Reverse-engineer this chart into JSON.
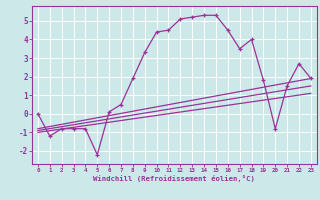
{
  "xlabel": "Windchill (Refroidissement éolien,°C)",
  "bg_color": "#cce8e8",
  "line_color": "#993399",
  "grid_color": "#ffffff",
  "xlim": [
    -0.5,
    23.5
  ],
  "ylim": [
    -2.7,
    5.8
  ],
  "xticks": [
    0,
    1,
    2,
    3,
    4,
    5,
    6,
    7,
    8,
    9,
    10,
    11,
    12,
    13,
    14,
    15,
    16,
    17,
    18,
    19,
    20,
    21,
    22,
    23
  ],
  "yticks": [
    -2,
    -1,
    0,
    1,
    2,
    3,
    4,
    5
  ],
  "series1_x": [
    0,
    1,
    2,
    3,
    4,
    5,
    6,
    7,
    8,
    9,
    10,
    11,
    12,
    13,
    14,
    15,
    16,
    17,
    18,
    19,
    20,
    21,
    22,
    23
  ],
  "series1_y": [
    0.0,
    -1.2,
    -0.8,
    -0.8,
    -0.8,
    -2.2,
    0.1,
    0.5,
    1.9,
    3.3,
    4.4,
    4.5,
    5.1,
    5.2,
    5.3,
    5.3,
    4.5,
    3.5,
    4.0,
    1.8,
    -0.8,
    1.5,
    2.7,
    1.9
  ],
  "series2_x": [
    0,
    23
  ],
  "series2_y": [
    -0.8,
    1.9
  ],
  "series3_x": [
    0,
    23
  ],
  "series3_y": [
    -0.9,
    1.5
  ],
  "series4_x": [
    0,
    23
  ],
  "series4_y": [
    -1.0,
    1.1
  ]
}
